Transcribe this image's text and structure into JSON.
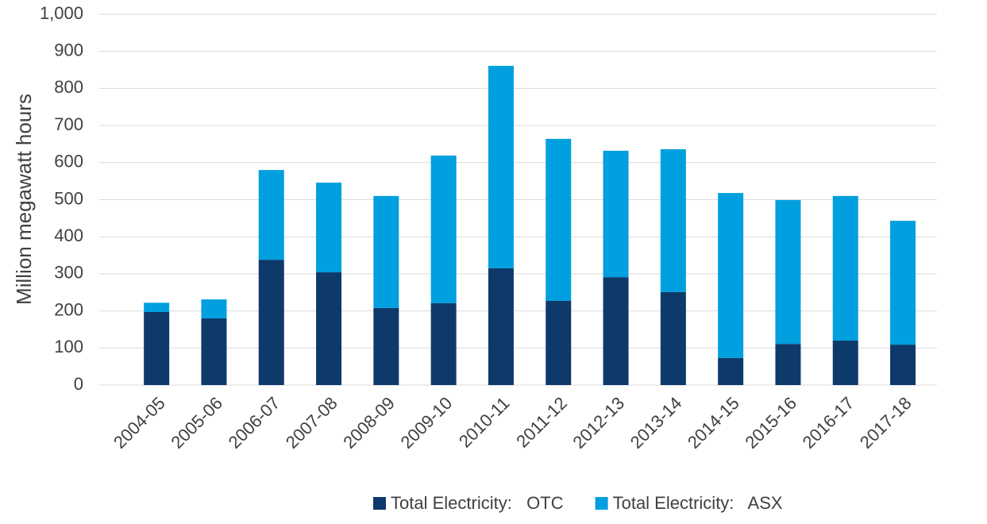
{
  "chart_data": {
    "type": "stacked_bar",
    "y_axis_label": "Million megawatt hours",
    "categories": [
      "2004-05",
      "2005-06",
      "2006-07",
      "2007-08",
      "2008-09",
      "2009-10",
      "2010-11",
      "2011-12",
      "2012-13",
      "2013-14",
      "2014-15",
      "2015-16",
      "2016-17",
      "2017-18"
    ],
    "series": [
      {
        "name": "Total Electricity:   OTC",
        "color": "#0e3a6b",
        "values": [
          197,
          180,
          338,
          304,
          208,
          221,
          315,
          227,
          291,
          251,
          73,
          111,
          120,
          109
        ]
      },
      {
        "name": "Total Electricity:   ASX",
        "color": "#009fdf",
        "values": [
          25,
          51,
          242,
          242,
          302,
          398,
          546,
          437,
          341,
          385,
          445,
          388,
          390,
          334
        ]
      }
    ],
    "ylim": [
      0,
      1000
    ],
    "yticks": [
      0,
      100,
      200,
      300,
      400,
      500,
      600,
      700,
      800,
      900,
      {
        "value": 1000,
        "label": "1,000"
      }
    ],
    "grid": true,
    "legend": "bottom"
  }
}
